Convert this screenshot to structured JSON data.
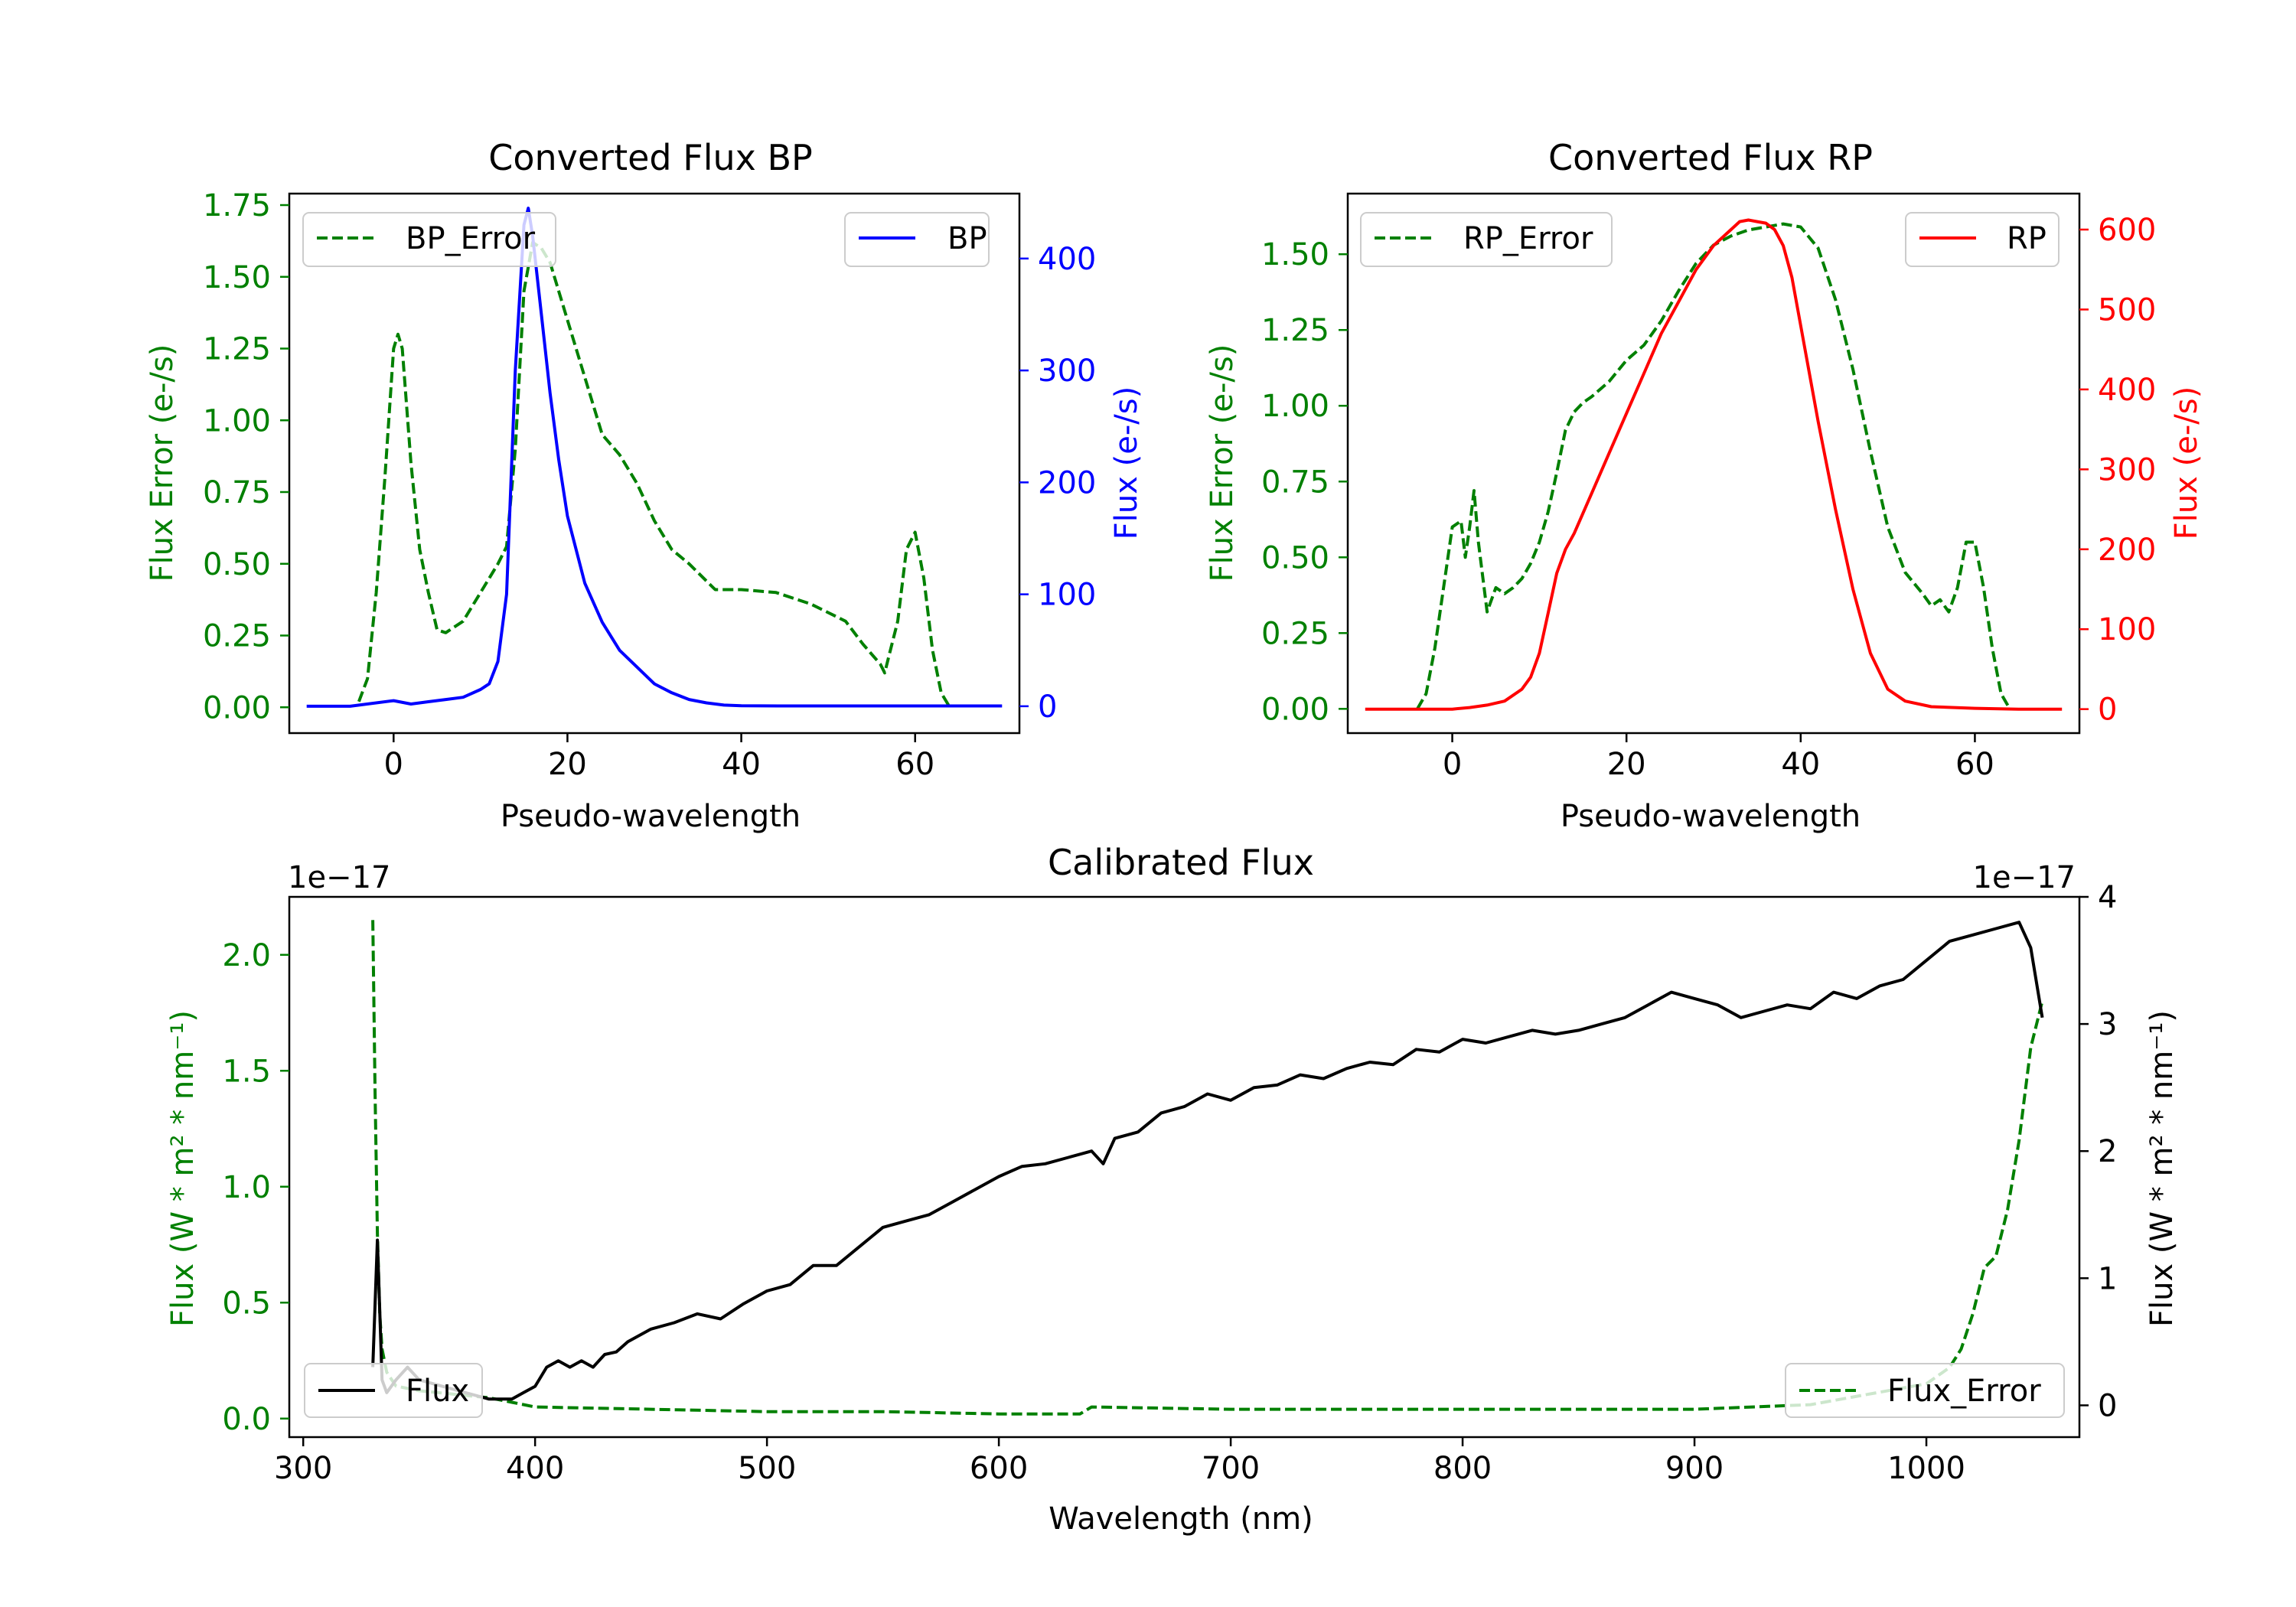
{
  "colors": {
    "green": "#008000",
    "blue": "#0000ff",
    "red": "#ff0000",
    "black": "#000000",
    "background": "#ffffff"
  },
  "chart_data": [
    {
      "id": "bp",
      "type": "line",
      "title": "Converted Flux BP",
      "xlabel": "Pseudo-wavelength",
      "ylabel_left": "Flux Error (e-/s)",
      "ylabel_right": "Flux (e-/s)",
      "xlim": [
        -12,
        72
      ],
      "ylim_left": [
        -0.09,
        1.79
      ],
      "ylim_right": [
        -24,
        458
      ],
      "xticks": [
        0,
        20,
        40,
        60
      ],
      "xtick_labels": [
        "0",
        "20",
        "40",
        "60"
      ],
      "yticks_left": [
        0,
        0.25,
        0.5,
        0.75,
        1.0,
        1.25,
        1.5,
        1.75
      ],
      "ytick_labels_left": [
        "0.00",
        "0.25",
        "0.50",
        "0.75",
        "1.00",
        "1.25",
        "1.50",
        "1.75"
      ],
      "yticks_right": [
        0,
        100,
        200,
        300,
        400
      ],
      "ytick_labels_right": [
        "0",
        "100",
        "200",
        "300",
        "400"
      ],
      "legend_left": "BP_Error",
      "legend_right": "BP",
      "series": [
        {
          "name": "BP_Error",
          "axis": "left",
          "color": "#008000",
          "dashed": true,
          "x": [
            -4,
            -3,
            -2,
            -1,
            0,
            0.5,
            1,
            2,
            3,
            4,
            5,
            6,
            8,
            10,
            12,
            13,
            14,
            15,
            16,
            17,
            18,
            20,
            22,
            24,
            26,
            28,
            30,
            32,
            34,
            36,
            37,
            40,
            44,
            48,
            50,
            52,
            54,
            56,
            56.5,
            57,
            58,
            59,
            60,
            61,
            62,
            63,
            64
          ],
          "y": [
            0.02,
            0.1,
            0.4,
            0.8,
            1.25,
            1.3,
            1.25,
            0.85,
            0.55,
            0.4,
            0.27,
            0.26,
            0.3,
            0.4,
            0.5,
            0.56,
            0.9,
            1.45,
            1.62,
            1.6,
            1.55,
            1.35,
            1.15,
            0.95,
            0.88,
            0.78,
            0.65,
            0.55,
            0.5,
            0.44,
            0.41,
            0.41,
            0.4,
            0.36,
            0.33,
            0.3,
            0.22,
            0.15,
            0.12,
            0.18,
            0.3,
            0.55,
            0.61,
            0.45,
            0.2,
            0.05,
            0.0
          ]
        },
        {
          "name": "BP",
          "axis": "right",
          "color": "#0000ff",
          "dashed": false,
          "x": [
            -10,
            -5,
            0,
            2,
            4,
            6,
            8,
            10,
            11,
            12,
            13,
            14,
            15,
            15.5,
            16,
            17,
            18,
            19,
            20,
            22,
            24,
            26,
            28,
            30,
            32,
            34,
            36,
            38,
            40,
            45,
            50,
            55,
            60,
            65,
            70
          ],
          "y": [
            0,
            0,
            5,
            2,
            4,
            6,
            8,
            15,
            20,
            40,
            100,
            300,
            430,
            445,
            420,
            350,
            280,
            220,
            170,
            110,
            75,
            50,
            35,
            20,
            12,
            6,
            3,
            1,
            0.5,
            0.3,
            0.3,
            0.3,
            0.3,
            0.3,
            0.3
          ]
        }
      ]
    },
    {
      "id": "rp",
      "type": "line",
      "title": "Converted Flux RP",
      "xlabel": "Pseudo-wavelength",
      "ylabel_left": "Flux Error (e-/s)",
      "ylabel_right": "Flux (e-/s)",
      "xlim": [
        -12,
        72
      ],
      "ylim_left": [
        -0.08,
        1.7
      ],
      "ylim_right": [
        -30,
        645
      ],
      "xticks": [
        0,
        20,
        40,
        60
      ],
      "xtick_labels": [
        "0",
        "20",
        "40",
        "60"
      ],
      "yticks_left": [
        0,
        0.25,
        0.5,
        0.75,
        1.0,
        1.25,
        1.5
      ],
      "ytick_labels_left": [
        "0.00",
        "0.25",
        "0.50",
        "0.75",
        "1.00",
        "1.25",
        "1.50"
      ],
      "yticks_right": [
        0,
        100,
        200,
        300,
        400,
        500,
        600
      ],
      "ytick_labels_right": [
        "0",
        "100",
        "200",
        "300",
        "400",
        "500",
        "600"
      ],
      "legend_left": "RP_Error",
      "legend_right": "RP",
      "series": [
        {
          "name": "RP_Error",
          "axis": "left",
          "color": "#008000",
          "dashed": true,
          "x": [
            -4,
            -3,
            -2,
            -1,
            0,
            1,
            1.5,
            2,
            2.5,
            3,
            4,
            5,
            6,
            7,
            8,
            9,
            10,
            11,
            12,
            13,
            14,
            15,
            16,
            18,
            20,
            22,
            24,
            26,
            28,
            30,
            32,
            34,
            36,
            38,
            40,
            42,
            44,
            46,
            48,
            50,
            52,
            54,
            55,
            56,
            57,
            58,
            59,
            60,
            61,
            62,
            63,
            64
          ],
          "y": [
            0.0,
            0.05,
            0.2,
            0.4,
            0.6,
            0.62,
            0.5,
            0.6,
            0.72,
            0.55,
            0.32,
            0.4,
            0.38,
            0.4,
            0.43,
            0.48,
            0.55,
            0.65,
            0.78,
            0.92,
            0.98,
            1.01,
            1.03,
            1.08,
            1.15,
            1.2,
            1.28,
            1.38,
            1.47,
            1.53,
            1.56,
            1.58,
            1.59,
            1.6,
            1.59,
            1.52,
            1.35,
            1.12,
            0.85,
            0.6,
            0.45,
            0.38,
            0.34,
            0.36,
            0.32,
            0.4,
            0.55,
            0.55,
            0.4,
            0.2,
            0.05,
            0.0
          ]
        },
        {
          "name": "RP",
          "axis": "right",
          "color": "#ff0000",
          "dashed": false,
          "x": [
            -10,
            -5,
            0,
            2,
            4,
            6,
            8,
            9,
            10,
            11,
            12,
            13,
            14,
            16,
            18,
            20,
            22,
            24,
            26,
            28,
            30,
            32,
            33,
            34,
            35,
            36,
            37,
            38,
            39,
            40,
            41,
            42,
            44,
            46,
            48,
            50,
            52,
            55,
            60,
            65,
            70
          ],
          "y": [
            0,
            0,
            0,
            2,
            5,
            10,
            25,
            40,
            70,
            120,
            170,
            200,
            220,
            270,
            320,
            370,
            420,
            470,
            510,
            550,
            580,
            600,
            610,
            612,
            610,
            608,
            600,
            580,
            540,
            480,
            420,
            360,
            250,
            150,
            70,
            25,
            10,
            3,
            1,
            0,
            0
          ]
        }
      ]
    },
    {
      "id": "calibrated",
      "type": "line",
      "title": "Calibrated Flux",
      "xlabel": "Wavelength (nm)",
      "ylabel_left": "Flux (W * m² * nm⁻¹)",
      "ylabel_right": "Flux (W * m² * nm⁻¹)",
      "offset_left": "1e−17",
      "offset_right": "1e−17",
      "xlim": [
        294,
        1066
      ],
      "ylim_left": [
        -0.08,
        2.25
      ],
      "ylim_right": [
        -0.25,
        4.0
      ],
      "xticks": [
        300,
        400,
        500,
        600,
        700,
        800,
        900,
        1000
      ],
      "xtick_labels": [
        "300",
        "400",
        "500",
        "600",
        "700",
        "800",
        "900",
        "1000"
      ],
      "yticks_left": [
        0,
        0.5,
        1.0,
        1.5,
        2.0
      ],
      "ytick_labels_left": [
        "0.0",
        "0.5",
        "1.0",
        "1.5",
        "2.0"
      ],
      "yticks_right": [
        0,
        1,
        2,
        3,
        4
      ],
      "ytick_labels_right": [
        "0",
        "1",
        "2",
        "3",
        "4"
      ],
      "legend_left": "Flux",
      "legend_right": "Flux_Error",
      "series": [
        {
          "name": "Flux_Error",
          "axis": "left",
          "color": "#008000",
          "dashed": true,
          "x": [
            330,
            331,
            332,
            333,
            334,
            336,
            340,
            350,
            360,
            370,
            380,
            390,
            400,
            450,
            500,
            550,
            600,
            635,
            640,
            700,
            800,
            900,
            950,
            1000,
            1010,
            1015,
            1020,
            1025,
            1030,
            1035,
            1040,
            1045,
            1050
          ],
          "y": [
            2.15,
            1.4,
            0.8,
            0.45,
            0.3,
            0.2,
            0.14,
            0.12,
            0.11,
            0.1,
            0.09,
            0.07,
            0.05,
            0.04,
            0.03,
            0.03,
            0.02,
            0.02,
            0.05,
            0.04,
            0.04,
            0.04,
            0.06,
            0.15,
            0.22,
            0.3,
            0.45,
            0.65,
            0.7,
            0.9,
            1.2,
            1.6,
            1.8
          ]
        },
        {
          "name": "Flux",
          "axis": "right",
          "color": "#000000",
          "dashed": false,
          "x": [
            330,
            332,
            334,
            336,
            340,
            345,
            350,
            360,
            370,
            380,
            390,
            395,
            400,
            405,
            410,
            415,
            420,
            425,
            430,
            435,
            440,
            450,
            460,
            470,
            480,
            490,
            500,
            510,
            520,
            530,
            540,
            550,
            560,
            570,
            580,
            590,
            600,
            610,
            620,
            630,
            640,
            645,
            650,
            660,
            670,
            680,
            690,
            700,
            710,
            720,
            730,
            740,
            750,
            760,
            770,
            780,
            790,
            800,
            810,
            820,
            830,
            840,
            850,
            860,
            870,
            880,
            890,
            900,
            910,
            920,
            930,
            940,
            950,
            960,
            970,
            980,
            990,
            1000,
            1010,
            1020,
            1030,
            1040,
            1045,
            1050
          ],
          "y": [
            0.3,
            1.3,
            0.2,
            0.1,
            0.2,
            0.3,
            0.2,
            0.15,
            0.1,
            0.05,
            0.05,
            0.1,
            0.15,
            0.3,
            0.35,
            0.3,
            0.35,
            0.3,
            0.4,
            0.42,
            0.5,
            0.6,
            0.65,
            0.72,
            0.68,
            0.8,
            0.9,
            0.95,
            1.1,
            1.1,
            1.25,
            1.4,
            1.45,
            1.5,
            1.6,
            1.7,
            1.8,
            1.88,
            1.9,
            1.95,
            2.0,
            1.9,
            2.1,
            2.15,
            2.3,
            2.35,
            2.45,
            2.4,
            2.5,
            2.52,
            2.6,
            2.57,
            2.65,
            2.7,
            2.68,
            2.8,
            2.78,
            2.88,
            2.85,
            2.9,
            2.95,
            2.92,
            2.95,
            3.0,
            3.05,
            3.15,
            3.25,
            3.2,
            3.15,
            3.05,
            3.1,
            3.15,
            3.12,
            3.25,
            3.2,
            3.3,
            3.35,
            3.5,
            3.65,
            3.7,
            3.75,
            3.8,
            3.6,
            3.05
          ]
        }
      ]
    }
  ]
}
